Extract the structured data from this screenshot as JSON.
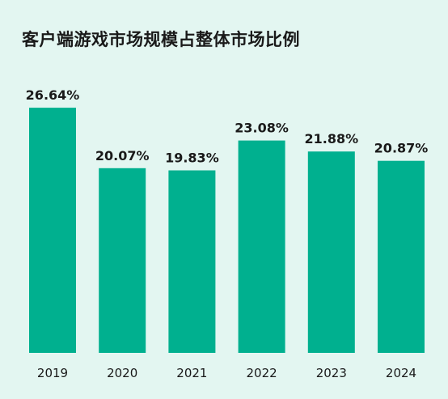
{
  "chart_data": {
    "type": "bar",
    "title": "客户端游戏市场规模占整体市场比例",
    "categories": [
      "2019",
      "2020",
      "2021",
      "2022",
      "2023",
      "2024"
    ],
    "values": [
      26.64,
      20.07,
      19.83,
      23.08,
      21.88,
      20.87
    ],
    "value_labels": [
      "26.64%",
      "20.07%",
      "19.83%",
      "23.08%",
      "21.88%",
      "20.87%"
    ],
    "xlabel": "",
    "ylabel": "",
    "ylim": [
      0,
      28
    ],
    "grid": false,
    "legend": "none",
    "bar_color": "#00b08f"
  }
}
